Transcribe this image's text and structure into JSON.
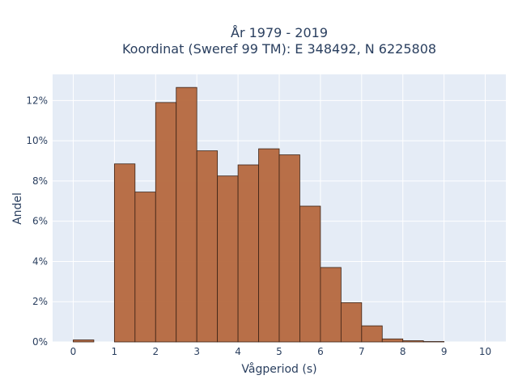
{
  "chart_data": {
    "type": "bar",
    "title_line1": "År 1979 - 2019",
    "title_line2": "Koordinat (Sweref 99 TM): E 348492, N 6225808",
    "xlabel": "Vågperiod (s)",
    "ylabel": "Andel",
    "bin_width": 0.5,
    "bins": [
      {
        "x0": 0.0,
        "value": 0.1
      },
      {
        "x0": 0.5,
        "value": 0.0
      },
      {
        "x0": 1.0,
        "value": 8.85
      },
      {
        "x0": 1.5,
        "value": 7.45
      },
      {
        "x0": 2.0,
        "value": 11.9
      },
      {
        "x0": 2.5,
        "value": 12.65
      },
      {
        "x0": 3.0,
        "value": 9.5
      },
      {
        "x0": 3.5,
        "value": 8.25
      },
      {
        "x0": 4.0,
        "value": 8.8
      },
      {
        "x0": 4.5,
        "value": 9.6
      },
      {
        "x0": 5.0,
        "value": 9.3
      },
      {
        "x0": 5.5,
        "value": 6.75
      },
      {
        "x0": 6.0,
        "value": 3.7
      },
      {
        "x0": 6.5,
        "value": 1.95
      },
      {
        "x0": 7.0,
        "value": 0.8
      },
      {
        "x0": 7.5,
        "value": 0.15
      },
      {
        "x0": 8.0,
        "value": 0.06
      },
      {
        "x0": 8.5,
        "value": 0.02
      }
    ],
    "x_ticks": [
      0,
      1,
      2,
      3,
      4,
      5,
      6,
      7,
      8,
      9,
      10
    ],
    "x_tick_labels": [
      "0",
      "1",
      "2",
      "3",
      "4",
      "5",
      "6",
      "7",
      "8",
      "9",
      "10"
    ],
    "y_ticks": [
      0,
      2,
      4,
      6,
      8,
      10,
      12
    ],
    "y_tick_labels": [
      "0%",
      "2%",
      "4%",
      "6%",
      "8%",
      "10%",
      "12%"
    ],
    "xlim": [
      -0.5,
      10.5
    ],
    "ylim": [
      0,
      13.3
    ],
    "grid": true,
    "bar_color": "#b5683e",
    "bar_edge_color": "#3b2215",
    "plot_bg_color": "#e5ecf6",
    "grid_color": "#ffffff"
  }
}
